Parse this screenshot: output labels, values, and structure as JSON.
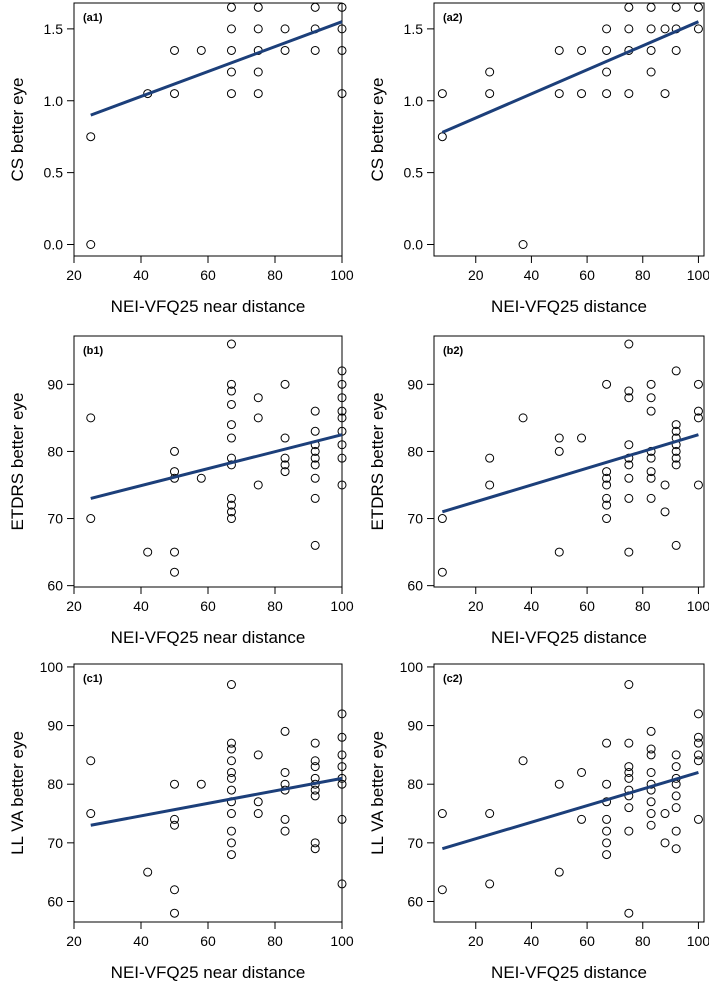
{
  "chart_data": [
    {
      "type": "scatter",
      "panel_label": "(a1)",
      "xlabel": "NEI-VFQ25 near distance",
      "ylabel": "CS better eye",
      "xlim": [
        20,
        100
      ],
      "ylim": [
        -0.08,
        1.68
      ],
      "xticks": [
        20,
        40,
        60,
        80,
        100
      ],
      "yticks": [
        0.0,
        0.5,
        1.0,
        1.5
      ],
      "ytick_labels": [
        "0.0",
        "0.5",
        "1.0",
        "1.5"
      ],
      "points": [
        [
          25,
          0.75
        ],
        [
          25,
          0.0
        ],
        [
          42,
          1.05
        ],
        [
          50,
          1.05
        ],
        [
          50,
          1.35
        ],
        [
          58,
          1.35
        ],
        [
          67,
          1.05
        ],
        [
          67,
          1.2
        ],
        [
          67,
          1.35
        ],
        [
          67,
          1.5
        ],
        [
          67,
          1.65
        ],
        [
          75,
          1.05
        ],
        [
          75,
          1.2
        ],
        [
          75,
          1.35
        ],
        [
          75,
          1.5
        ],
        [
          75,
          1.65
        ],
        [
          83,
          1.35
        ],
        [
          83,
          1.5
        ],
        [
          92,
          1.35
        ],
        [
          92,
          1.5
        ],
        [
          92,
          1.65
        ],
        [
          100,
          1.05
        ],
        [
          100,
          1.35
        ],
        [
          100,
          1.5
        ],
        [
          100,
          1.65
        ]
      ],
      "fit_line": [
        [
          25,
          0.9
        ],
        [
          100,
          1.55
        ]
      ],
      "line_color": "#1c3f7a"
    },
    {
      "type": "scatter",
      "panel_label": "(a2)",
      "xlabel": "NEI-VFQ25 distance",
      "ylabel": "CS better eye",
      "xlim": [
        5,
        102
      ],
      "ylim": [
        -0.08,
        1.68
      ],
      "xticks": [
        20,
        40,
        60,
        80,
        100
      ],
      "yticks": [
        0.0,
        0.5,
        1.0,
        1.5
      ],
      "ytick_labels": [
        "0.0",
        "0.5",
        "1.0",
        "1.5"
      ],
      "points": [
        [
          8,
          1.05
        ],
        [
          8,
          0.75
        ],
        [
          25,
          1.05
        ],
        [
          25,
          1.2
        ],
        [
          37,
          0.0
        ],
        [
          50,
          1.05
        ],
        [
          50,
          1.35
        ],
        [
          58,
          1.05
        ],
        [
          58,
          1.35
        ],
        [
          67,
          1.05
        ],
        [
          67,
          1.2
        ],
        [
          67,
          1.35
        ],
        [
          67,
          1.5
        ],
        [
          75,
          1.05
        ],
        [
          75,
          1.35
        ],
        [
          75,
          1.5
        ],
        [
          75,
          1.65
        ],
        [
          83,
          1.2
        ],
        [
          83,
          1.35
        ],
        [
          83,
          1.5
        ],
        [
          83,
          1.65
        ],
        [
          88,
          1.05
        ],
        [
          88,
          1.5
        ],
        [
          92,
          1.35
        ],
        [
          92,
          1.5
        ],
        [
          92,
          1.65
        ],
        [
          100,
          1.5
        ],
        [
          100,
          1.65
        ]
      ],
      "fit_line": [
        [
          8,
          0.78
        ],
        [
          100,
          1.55
        ]
      ],
      "line_color": "#1c3f7a"
    },
    {
      "type": "scatter",
      "panel_label": "(b1)",
      "xlabel": "NEI-VFQ25 near distance",
      "ylabel": "ETDRS better eye",
      "xlim": [
        20,
        100
      ],
      "ylim": [
        59.8,
        97.2
      ],
      "xticks": [
        20,
        40,
        60,
        80,
        100
      ],
      "yticks": [
        60,
        70,
        80,
        90
      ],
      "ytick_labels": [
        "60",
        "70",
        "80",
        "90"
      ],
      "points": [
        [
          25,
          85
        ],
        [
          25,
          70
        ],
        [
          42,
          65
        ],
        [
          50,
          80
        ],
        [
          50,
          77
        ],
        [
          50,
          76
        ],
        [
          50,
          65
        ],
        [
          50,
          62
        ],
        [
          58,
          76
        ],
        [
          67,
          96
        ],
        [
          67,
          90
        ],
        [
          67,
          89
        ],
        [
          67,
          87
        ],
        [
          67,
          84
        ],
        [
          67,
          82
        ],
        [
          67,
          79
        ],
        [
          67,
          78
        ],
        [
          67,
          73
        ],
        [
          67,
          72
        ],
        [
          67,
          71
        ],
        [
          67,
          70
        ],
        [
          75,
          88
        ],
        [
          75,
          85
        ],
        [
          75,
          75
        ],
        [
          83,
          90
        ],
        [
          83,
          82
        ],
        [
          83,
          79
        ],
        [
          83,
          78
        ],
        [
          83,
          77
        ],
        [
          92,
          86
        ],
        [
          92,
          83
        ],
        [
          92,
          81
        ],
        [
          92,
          80
        ],
        [
          92,
          79
        ],
        [
          92,
          78
        ],
        [
          92,
          76
        ],
        [
          92,
          73
        ],
        [
          92,
          66
        ],
        [
          100,
          92
        ],
        [
          100,
          90
        ],
        [
          100,
          88
        ],
        [
          100,
          86
        ],
        [
          100,
          85
        ],
        [
          100,
          83
        ],
        [
          100,
          81
        ],
        [
          100,
          79
        ],
        [
          100,
          75
        ]
      ],
      "fit_line": [
        [
          25,
          73
        ],
        [
          100,
          82.5
        ]
      ],
      "line_color": "#1c3f7a"
    },
    {
      "type": "scatter",
      "panel_label": "(b2)",
      "xlabel": "NEI-VFQ25 distance",
      "ylabel": "ETDRS better eye",
      "xlim": [
        5,
        102
      ],
      "ylim": [
        59.8,
        97.2
      ],
      "xticks": [
        20,
        40,
        60,
        80,
        100
      ],
      "yticks": [
        60,
        70,
        80,
        90
      ],
      "ytick_labels": [
        "60",
        "70",
        "80",
        "90"
      ],
      "points": [
        [
          8,
          70
        ],
        [
          8,
          62
        ],
        [
          25,
          79
        ],
        [
          25,
          75
        ],
        [
          37,
          85
        ],
        [
          50,
          82
        ],
        [
          50,
          80
        ],
        [
          50,
          65
        ],
        [
          58,
          82
        ],
        [
          67,
          90
        ],
        [
          67,
          77
        ],
        [
          67,
          76
        ],
        [
          67,
          75
        ],
        [
          67,
          73
        ],
        [
          67,
          72
        ],
        [
          67,
          70
        ],
        [
          75,
          96
        ],
        [
          75,
          89
        ],
        [
          75,
          88
        ],
        [
          75,
          81
        ],
        [
          75,
          79
        ],
        [
          75,
          78
        ],
        [
          75,
          76
        ],
        [
          75,
          73
        ],
        [
          75,
          65
        ],
        [
          83,
          90
        ],
        [
          83,
          88
        ],
        [
          83,
          86
        ],
        [
          83,
          80
        ],
        [
          83,
          79
        ],
        [
          83,
          77
        ],
        [
          83,
          76
        ],
        [
          83,
          73
        ],
        [
          88,
          75
        ],
        [
          88,
          71
        ],
        [
          92,
          92
        ],
        [
          92,
          84
        ],
        [
          92,
          83
        ],
        [
          92,
          82
        ],
        [
          92,
          81
        ],
        [
          92,
          80
        ],
        [
          92,
          79
        ],
        [
          92,
          78
        ],
        [
          92,
          66
        ],
        [
          100,
          90
        ],
        [
          100,
          86
        ],
        [
          100,
          85
        ],
        [
          100,
          75
        ]
      ],
      "fit_line": [
        [
          8,
          71
        ],
        [
          100,
          82.5
        ]
      ],
      "line_color": "#1c3f7a"
    },
    {
      "type": "scatter",
      "panel_label": "(c1)",
      "xlabel": "NEI-VFQ25 near distance",
      "ylabel": "LL VA better eye",
      "xlim": [
        20,
        100
      ],
      "ylim": [
        56.5,
        100.5
      ],
      "xticks": [
        20,
        40,
        60,
        80,
        100
      ],
      "yticks": [
        60,
        70,
        80,
        90,
        100
      ],
      "ytick_labels": [
        "60",
        "70",
        "80",
        "90",
        "100"
      ],
      "points": [
        [
          25,
          84
        ],
        [
          25,
          75
        ],
        [
          42,
          65
        ],
        [
          50,
          80
        ],
        [
          50,
          74
        ],
        [
          50,
          73
        ],
        [
          50,
          62
        ],
        [
          50,
          58
        ],
        [
          58,
          80
        ],
        [
          67,
          97
        ],
        [
          67,
          87
        ],
        [
          67,
          86
        ],
        [
          67,
          84
        ],
        [
          67,
          82
        ],
        [
          67,
          81
        ],
        [
          67,
          79
        ],
        [
          67,
          77
        ],
        [
          67,
          75
        ],
        [
          67,
          72
        ],
        [
          67,
          70
        ],
        [
          67,
          68
        ],
        [
          75,
          85
        ],
        [
          75,
          77
        ],
        [
          75,
          75
        ],
        [
          83,
          89
        ],
        [
          83,
          82
        ],
        [
          83,
          80
        ],
        [
          83,
          79
        ],
        [
          83,
          74
        ],
        [
          83,
          72
        ],
        [
          92,
          87
        ],
        [
          92,
          84
        ],
        [
          92,
          83
        ],
        [
          92,
          81
        ],
        [
          92,
          80
        ],
        [
          92,
          79
        ],
        [
          92,
          78
        ],
        [
          92,
          70
        ],
        [
          92,
          69
        ],
        [
          100,
          92
        ],
        [
          100,
          88
        ],
        [
          100,
          85
        ],
        [
          100,
          83
        ],
        [
          100,
          81
        ],
        [
          100,
          80
        ],
        [
          100,
          74
        ],
        [
          100,
          63
        ]
      ],
      "fit_line": [
        [
          25,
          73
        ],
        [
          100,
          81
        ]
      ],
      "line_color": "#1c3f7a"
    },
    {
      "type": "scatter",
      "panel_label": "(c2)",
      "xlabel": "NEI-VFQ25 distance",
      "ylabel": "LL VA better eye",
      "xlim": [
        5,
        102
      ],
      "ylim": [
        56.5,
        100.5
      ],
      "xticks": [
        20,
        40,
        60,
        80,
        100
      ],
      "yticks": [
        60,
        70,
        80,
        90,
        100
      ],
      "ytick_labels": [
        "60",
        "70",
        "80",
        "90",
        "100"
      ],
      "points": [
        [
          8,
          75
        ],
        [
          8,
          62
        ],
        [
          25,
          75
        ],
        [
          25,
          63
        ],
        [
          37,
          84
        ],
        [
          50,
          80
        ],
        [
          50,
          65
        ],
        [
          58,
          82
        ],
        [
          58,
          74
        ],
        [
          67,
          87
        ],
        [
          67,
          80
        ],
        [
          67,
          77
        ],
        [
          67,
          74
        ],
        [
          67,
          72
        ],
        [
          67,
          70
        ],
        [
          67,
          68
        ],
        [
          75,
          97
        ],
        [
          75,
          87
        ],
        [
          75,
          83
        ],
        [
          75,
          82
        ],
        [
          75,
          81
        ],
        [
          75,
          79
        ],
        [
          75,
          78
        ],
        [
          75,
          76
        ],
        [
          75,
          72
        ],
        [
          75,
          58
        ],
        [
          83,
          89
        ],
        [
          83,
          86
        ],
        [
          83,
          85
        ],
        [
          83,
          82
        ],
        [
          83,
          80
        ],
        [
          83,
          79
        ],
        [
          83,
          77
        ],
        [
          83,
          75
        ],
        [
          83,
          73
        ],
        [
          88,
          75
        ],
        [
          88,
          70
        ],
        [
          92,
          85
        ],
        [
          92,
          83
        ],
        [
          92,
          81
        ],
        [
          92,
          80
        ],
        [
          92,
          78
        ],
        [
          92,
          76
        ],
        [
          92,
          72
        ],
        [
          92,
          69
        ],
        [
          100,
          92
        ],
        [
          100,
          88
        ],
        [
          100,
          87
        ],
        [
          100,
          85
        ],
        [
          100,
          84
        ],
        [
          100,
          74
        ]
      ],
      "fit_line": [
        [
          8,
          69
        ],
        [
          100,
          82
        ]
      ],
      "line_color": "#1c3f7a"
    }
  ]
}
